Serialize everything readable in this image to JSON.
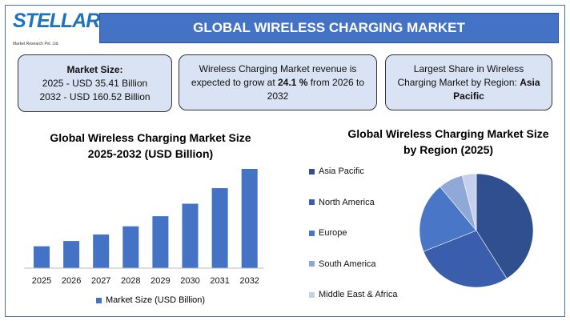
{
  "logo": {
    "text": "STELLAR",
    "subtext": "Market Research Pvt. Ltd."
  },
  "banner": {
    "title": "GLOBAL WIRELESS CHARGING MARKET",
    "color": "#4472c4"
  },
  "cards": [
    {
      "heading": "Market Size:",
      "line1": "2025 - USD 35.41 Billion",
      "line2": "2032 - USD 160.52 Billion"
    },
    {
      "pre": "Wireless Charging Market revenue is expected to grow at ",
      "bold": "24.1 %",
      "post": " from 2026 to 2032"
    },
    {
      "pre": "Largest Share in Wireless Charging Market by Region: ",
      "bold": "Asia Pacific"
    }
  ],
  "chart_data": [
    {
      "type": "bar",
      "title": "Global Wireless Charging Market Size 2025-2032 (USD Billion)",
      "title_lines": [
        "Global Wireless Charging Market Size",
        "2025-2032 (USD Billion)"
      ],
      "categories": [
        "2025",
        "2026",
        "2027",
        "2028",
        "2029",
        "2030",
        "2031",
        "2032"
      ],
      "series": [
        {
          "name": "Market Size (USD Billion)",
          "values": [
            35.41,
            43.9,
            54.5,
            67.7,
            84.0,
            104.2,
            129.4,
            160.52
          ],
          "color": "#4472c4"
        }
      ],
      "ylim": [
        0,
        170
      ],
      "grid": false,
      "legend": "bottom"
    },
    {
      "type": "pie",
      "title": "Global Wireless Charging Market Size by Region (2025)",
      "title_lines": [
        "Global Wireless Charging Market Size",
        "by Region (2025)"
      ],
      "categories": [
        "Asia Pacific",
        "North America",
        "Europe",
        "South America",
        "Middle East & Africa"
      ],
      "values": [
        41,
        28,
        20,
        7,
        4
      ],
      "colors": [
        "#2f4f8f",
        "#3a5eab",
        "#4a76c8",
        "#8fa8d8",
        "#c5d1ec"
      ],
      "legend": "left"
    }
  ]
}
